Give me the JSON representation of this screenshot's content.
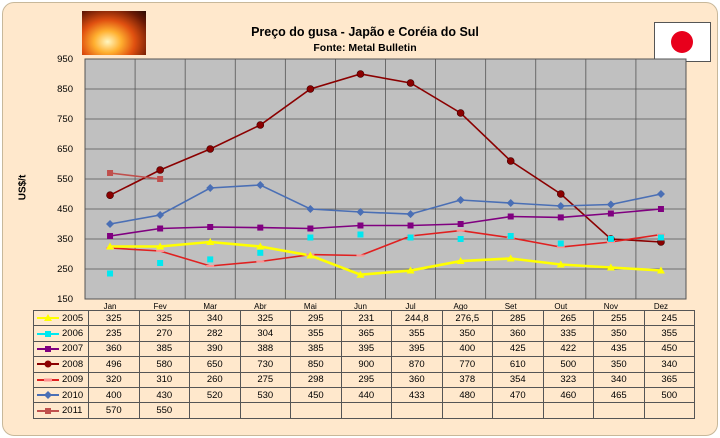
{
  "chart_data": {
    "type": "line",
    "title": "Preço do gusa - Japão e Coréia do Sul",
    "subtitle": "Fonte: Metal Bulletin",
    "ylabel": "US$/t",
    "ylim": [
      150,
      950
    ],
    "yticks": [
      150,
      250,
      350,
      450,
      550,
      650,
      750,
      850,
      950
    ],
    "categories": [
      "Jan",
      "Fev",
      "Mar",
      "Abr",
      "Mai",
      "Jun",
      "Jul",
      "Ago",
      "Set",
      "Out",
      "Nov",
      "Dez"
    ],
    "grid": true,
    "legend": "data table below plot",
    "series": [
      {
        "name": "2005",
        "color": "#ffff00",
        "marker": "triangle",
        "values": [
          325,
          325,
          340,
          325,
          295,
          231,
          244.8,
          276.5,
          285,
          265,
          255,
          245
        ],
        "labels": [
          "325",
          "325",
          "340",
          "325",
          "295",
          "231",
          "244,8",
          "276,5",
          "285",
          "265",
          "255",
          "245"
        ]
      },
      {
        "name": "2006",
        "color": "#00e8f0",
        "marker": "square",
        "values": [
          235,
          270,
          282,
          304,
          355,
          365,
          355,
          350,
          360,
          335,
          350,
          355
        ],
        "labels": [
          "235",
          "270",
          "282",
          "304",
          "355",
          "365",
          "355",
          "350",
          "360",
          "335",
          "350",
          "355"
        ]
      },
      {
        "name": "2007",
        "color": "#800080",
        "marker": "square",
        "values": [
          360,
          385,
          390,
          388,
          385,
          395,
          395,
          400,
          425,
          422,
          435,
          450
        ],
        "labels": [
          "360",
          "385",
          "390",
          "388",
          "385",
          "395",
          "395",
          "400",
          "425",
          "422",
          "435",
          "450"
        ]
      },
      {
        "name": "2008",
        "color": "#8b0000",
        "marker": "circle",
        "values": [
          496,
          580,
          650,
          730,
          850,
          900,
          870,
          770,
          610,
          500,
          350,
          340
        ],
        "labels": [
          "496",
          "580",
          "650",
          "730",
          "850",
          "900",
          "870",
          "770",
          "610",
          "500",
          "350",
          "340"
        ]
      },
      {
        "name": "2009",
        "color": "#e02020",
        "marker": "dash",
        "values": [
          320,
          310,
          260,
          275,
          298,
          295,
          360,
          378,
          354,
          323,
          340,
          365
        ],
        "labels": [
          "320",
          "310",
          "260",
          "275",
          "298",
          "295",
          "360",
          "378",
          "354",
          "323",
          "340",
          "365"
        ]
      },
      {
        "name": "2010",
        "color": "#4a6fb5",
        "marker": "diamond",
        "values": [
          400,
          430,
          520,
          530,
          450,
          440,
          433,
          480,
          470,
          460,
          465,
          500
        ],
        "labels": [
          "400",
          "430",
          "520",
          "530",
          "450",
          "440",
          "433",
          "480",
          "470",
          "460",
          "465",
          "500"
        ]
      },
      {
        "name": "2011",
        "color": "#c0504d",
        "marker": "square",
        "values": [
          570,
          550,
          null,
          null,
          null,
          null,
          null,
          null,
          null,
          null,
          null,
          null
        ],
        "labels": [
          "570",
          "550",
          "",
          "",
          "",
          "",
          "",
          "",
          "",
          "",
          "",
          ""
        ]
      }
    ]
  }
}
